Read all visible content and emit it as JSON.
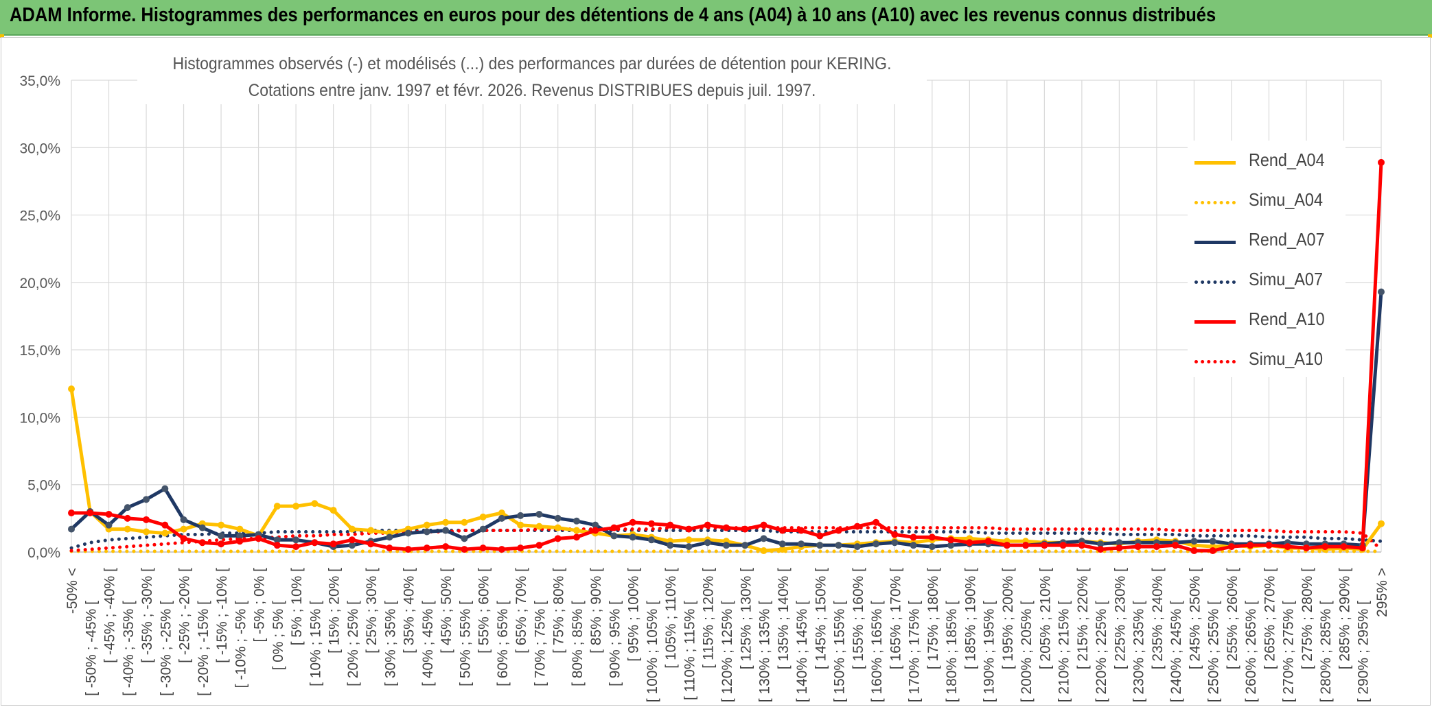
{
  "header": {
    "title": "ADAM Informe. Histogrammes des performances en euros pour des détentions de 4 ans (A04) à 10 ans (A10) avec les revenus connus distribués"
  },
  "chart_data": {
    "type": "line",
    "title_line1": "Histogrammes observés (-) et modélisés (...) des performances par durées de détention pour KERING.",
    "title_line2": "Cotations entre janv. 1997 et févr. 2026. Revenus DISTRIBUES depuis juil. 1997.",
    "ylim": [
      0,
      35
    ],
    "yticks": [
      "0,0%",
      "5,0%",
      "10,0%",
      "15,0%",
      "20,0%",
      "25,0%",
      "30,0%",
      "35,0%"
    ],
    "categories": [
      "-50% <",
      "[ -50% ; -45% [",
      "[ -45% ; -40% [",
      "[ -40% ; -35% [",
      "[ -35% ; -30% [",
      "[ -30% ; -25% [",
      "[ -25% ; -20% [",
      "[ -20% ; -15% [",
      "[ -15% ; -10% [",
      "[ -10% ; -5% [",
      "[ -5% ; 0% [",
      "[ 0% ; 5% [",
      "[ 5% ; 10% [",
      "[ 10% ; 15% [",
      "[ 15% ; 20% [",
      "[ 20% ; 25% [",
      "[ 25% ; 30% [",
      "[ 30% ; 35% [",
      "[ 35% ; 40% [",
      "[ 40% ; 45% [",
      "[ 45% ; 50% [",
      "[ 50% ; 55% [",
      "[ 55% ; 60% [",
      "[ 60% ; 65% [",
      "[ 65% ; 70% [",
      "[ 70% ; 75% [",
      "[ 75% ; 80% [",
      "[ 80% ; 85% [",
      "[ 85% ; 90% [",
      "[ 90% ; 95% [",
      "[ 95% ; 100% [",
      "[ 100% ; 105% [",
      "[ 105% ; 110% [",
      "[ 110% ; 115% [",
      "[ 115% ; 120% [",
      "[ 120% ; 125% [",
      "[ 125% ; 130% [",
      "[ 130% ; 135% [",
      "[ 135% ; 140% [",
      "[ 140% ; 145% [",
      "[ 145% ; 150% [",
      "[ 150% ; 155% [",
      "[ 155% ; 160% [",
      "[ 160% ; 165% [",
      "[ 165% ; 170% [",
      "[ 170% ; 175% [",
      "[ 175% ; 180% [",
      "[ 180% ; 185% [",
      "[ 185% ; 190% [",
      "[ 190% ; 195% [",
      "[ 195% ; 200% [",
      "[ 200% ; 205% [",
      "[ 205% ; 210% [",
      "[ 210% ; 215% [",
      "[ 215% ; 220% [",
      "[ 220% ; 225% [",
      "[ 225% ; 230% [",
      "[ 230% ; 235% [",
      "[ 235% ; 240% [",
      "[ 240% ; 245% [",
      "[ 245% ; 250% [",
      "[ 250% ; 255% [",
      "[ 255% ; 260% [",
      "[ 260% ; 265% [",
      "[ 265% ; 270% [",
      "[ 270% ; 275% [",
      "[ 275% ; 280% [",
      "[ 280% ; 285% [",
      "[ 285% ; 290% [",
      "[ 290% ; 295% [",
      "295% >"
    ],
    "series": [
      {
        "name": "Rend_A04",
        "color": "#ffc000",
        "style": "solid",
        "markers": true,
        "values": [
          12.1,
          3.0,
          1.7,
          1.7,
          1.5,
          1.4,
          1.7,
          2.1,
          2.0,
          1.7,
          1.2,
          3.4,
          3.4,
          3.6,
          3.1,
          1.7,
          1.6,
          1.4,
          1.7,
          2.0,
          2.2,
          2.2,
          2.6,
          2.9,
          2.0,
          1.9,
          1.8,
          1.6,
          1.4,
          1.2,
          1.3,
          1.1,
          0.8,
          0.9,
          0.9,
          0.8,
          0.5,
          0.1,
          0.2,
          0.4,
          0.5,
          0.5,
          0.6,
          0.7,
          0.8,
          0.7,
          0.9,
          1.0,
          1.0,
          0.9,
          0.8,
          0.8,
          0.7,
          0.7,
          0.8,
          0.7,
          0.6,
          0.8,
          0.9,
          0.8,
          0.5,
          0.4,
          0.5,
          0.4,
          0.5,
          0.3,
          0.3,
          0.2,
          0.3,
          0.2,
          2.1
        ]
      },
      {
        "name": "Simu_A04",
        "color": "#ffc000",
        "style": "dotted",
        "markers": false,
        "values": [
          0.05,
          0.05,
          0.05,
          0.05,
          0.05,
          0.05,
          0.05,
          0.05,
          0.05,
          0.05,
          0.05,
          0.05,
          0.05,
          0.05,
          0.05,
          0.05,
          0.05,
          0.05,
          0.05,
          0.05,
          0.05,
          0.05,
          0.05,
          0.05,
          0.05,
          0.05,
          0.05,
          0.05,
          0.05,
          0.05,
          0.05,
          0.05,
          0.05,
          0.05,
          0.05,
          0.05,
          0.05,
          0.05,
          0.05,
          0.05,
          0.05,
          0.05,
          0.05,
          0.05,
          0.05,
          0.05,
          0.05,
          0.05,
          0.05,
          0.05,
          0.05,
          0.05,
          0.05,
          0.05,
          0.05,
          0.05,
          0.05,
          0.05,
          0.05,
          0.05,
          0.05,
          0.05,
          0.05,
          0.05,
          0.05,
          0.05,
          0.05,
          0.05,
          0.05,
          0.05,
          0.05
        ]
      },
      {
        "name": "Rend_A07",
        "color": "#1f3864",
        "style": "solid",
        "markers": true,
        "values": [
          1.7,
          3.0,
          2.0,
          3.3,
          3.9,
          4.7,
          2.4,
          1.8,
          1.2,
          1.2,
          1.3,
          0.9,
          0.9,
          0.7,
          0.4,
          0.5,
          0.8,
          1.1,
          1.4,
          1.5,
          1.6,
          1.0,
          1.7,
          2.5,
          2.7,
          2.8,
          2.5,
          2.3,
          2.0,
          1.2,
          1.1,
          0.9,
          0.5,
          0.4,
          0.7,
          0.5,
          0.5,
          1.0,
          0.6,
          0.6,
          0.5,
          0.5,
          0.4,
          0.6,
          0.7,
          0.5,
          0.4,
          0.5,
          0.6,
          0.6,
          0.5,
          0.5,
          0.6,
          0.7,
          0.8,
          0.6,
          0.7,
          0.7,
          0.7,
          0.7,
          0.8,
          0.8,
          0.6,
          0.6,
          0.6,
          0.7,
          0.6,
          0.6,
          0.6,
          0.5,
          19.3
        ]
      },
      {
        "name": "Simu_A07",
        "color": "#1f3864",
        "style": "dotted",
        "markers": false,
        "values": [
          0.3,
          0.7,
          0.9,
          1.0,
          1.1,
          1.2,
          1.3,
          1.3,
          1.4,
          1.4,
          1.4,
          1.5,
          1.5,
          1.5,
          1.5,
          1.5,
          1.6,
          1.6,
          1.6,
          1.6,
          1.6,
          1.6,
          1.6,
          1.6,
          1.6,
          1.6,
          1.6,
          1.6,
          1.6,
          1.6,
          1.6,
          1.6,
          1.6,
          1.6,
          1.6,
          1.6,
          1.6,
          1.6,
          1.5,
          1.5,
          1.5,
          1.5,
          1.5,
          1.5,
          1.5,
          1.5,
          1.5,
          1.5,
          1.5,
          1.4,
          1.4,
          1.4,
          1.4,
          1.4,
          1.4,
          1.4,
          1.3,
          1.3,
          1.3,
          1.3,
          1.2,
          1.2,
          1.2,
          1.2,
          1.1,
          1.1,
          1.1,
          1.0,
          1.0,
          0.9,
          0.8
        ]
      },
      {
        "name": "Rend_A10",
        "color": "#ff0000",
        "style": "solid",
        "markers": true,
        "values": [
          2.9,
          2.9,
          2.8,
          2.5,
          2.4,
          2.0,
          1.0,
          0.7,
          0.6,
          0.8,
          1.0,
          0.5,
          0.4,
          0.7,
          0.6,
          0.9,
          0.6,
          0.3,
          0.2,
          0.3,
          0.4,
          0.2,
          0.3,
          0.2,
          0.3,
          0.5,
          1.0,
          1.1,
          1.6,
          1.8,
          2.2,
          2.1,
          2.0,
          1.7,
          2.0,
          1.8,
          1.7,
          2.0,
          1.6,
          1.6,
          1.2,
          1.6,
          1.9,
          2.2,
          1.3,
          1.1,
          1.1,
          0.9,
          0.7,
          0.8,
          0.5,
          0.5,
          0.5,
          0.5,
          0.5,
          0.2,
          0.3,
          0.4,
          0.4,
          0.5,
          0.1,
          0.1,
          0.4,
          0.5,
          0.5,
          0.4,
          0.3,
          0.4,
          0.4,
          0.3,
          28.9
        ]
      },
      {
        "name": "Simu_A10",
        "color": "#ff0000",
        "style": "dotted",
        "markers": false,
        "values": [
          0.1,
          0.2,
          0.3,
          0.4,
          0.5,
          0.6,
          0.7,
          0.8,
          0.9,
          1.0,
          1.0,
          1.1,
          1.2,
          1.2,
          1.3,
          1.3,
          1.4,
          1.4,
          1.5,
          1.5,
          1.5,
          1.6,
          1.6,
          1.6,
          1.6,
          1.7,
          1.7,
          1.7,
          1.7,
          1.7,
          1.7,
          1.7,
          1.8,
          1.8,
          1.8,
          1.8,
          1.8,
          1.8,
          1.8,
          1.8,
          1.8,
          1.8,
          1.8,
          1.8,
          1.8,
          1.8,
          1.8,
          1.8,
          1.8,
          1.8,
          1.7,
          1.7,
          1.7,
          1.7,
          1.7,
          1.7,
          1.7,
          1.7,
          1.7,
          1.6,
          1.6,
          1.6,
          1.6,
          1.6,
          1.6,
          1.5,
          1.5,
          1.5,
          1.5,
          1.4,
          0.2
        ]
      }
    ]
  }
}
